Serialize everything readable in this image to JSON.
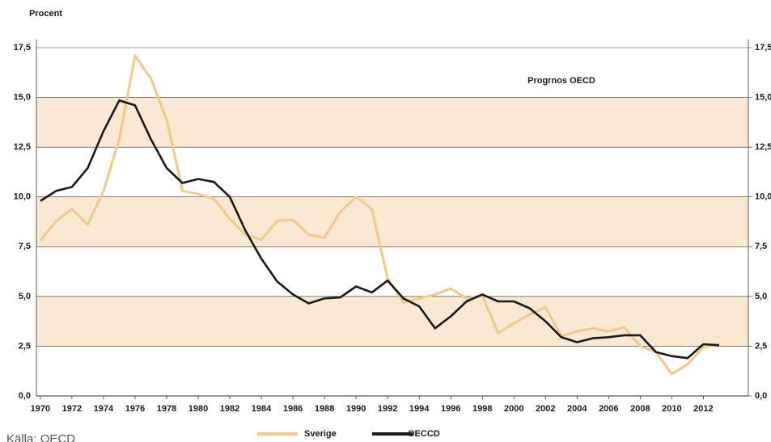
{
  "chart_data": {
    "type": "line",
    "y_label": "Procent",
    "annotation": "Progrnos OECD",
    "source": "Källa: OECD",
    "x": [
      1970,
      1971,
      1972,
      1973,
      1974,
      1975,
      1976,
      1977,
      1978,
      1979,
      1980,
      1981,
      1982,
      1983,
      1984,
      1985,
      1986,
      1987,
      1988,
      1989,
      1990,
      1991,
      1992,
      1993,
      1994,
      1995,
      1996,
      1997,
      1998,
      1999,
      2000,
      2001,
      2002,
      2003,
      2004,
      2005,
      2006,
      2007,
      2008,
      2009,
      2010,
      2011,
      2012,
      2013
    ],
    "series": [
      {
        "name": "Sverige",
        "color": "#f2c98a",
        "values": [
          7.8,
          8.8,
          9.4,
          8.6,
          10.3,
          12.9,
          17.1,
          15.95,
          13.9,
          10.3,
          10.15,
          9.9,
          8.9,
          8.1,
          7.85,
          8.8,
          8.85,
          8.1,
          7.95,
          9.25,
          10.0,
          9.4,
          5.9,
          4.7,
          4.9,
          5.1,
          5.4,
          4.9,
          5.05,
          3.15,
          3.65,
          4.1,
          4.45,
          3.0,
          3.25,
          3.4,
          3.25,
          3.45,
          2.5,
          2.2,
          1.1,
          1.6,
          2.45,
          2.6
        ]
      },
      {
        "name": "OECCD",
        "color": "#1a1a1a",
        "values": [
          9.8,
          10.3,
          10.5,
          11.45,
          13.3,
          14.85,
          14.6,
          12.9,
          11.45,
          10.7,
          10.9,
          10.75,
          10.0,
          8.3,
          6.9,
          5.75,
          5.1,
          4.65,
          4.9,
          4.95,
          5.5,
          5.2,
          5.8,
          4.9,
          4.5,
          3.4,
          4.0,
          4.75,
          5.1,
          4.75,
          4.75,
          4.4,
          3.75,
          2.95,
          2.7,
          2.9,
          2.95,
          3.05,
          3.05,
          2.2,
          2.0,
          1.9,
          2.6,
          2.55
        ]
      }
    ],
    "xlim": [
      1969.75,
      2014.85
    ],
    "xticks": [
      1970,
      1972,
      1974,
      1976,
      1978,
      1980,
      1982,
      1984,
      1986,
      1988,
      1990,
      1992,
      1994,
      1996,
      1998,
      2000,
      2002,
      2004,
      2006,
      2008,
      2010,
      2012
    ],
    "ylim": [
      0,
      17.5
    ],
    "yticks": [
      {
        "value": 0,
        "label": "0,0"
      },
      {
        "value": 2.5,
        "label": "2,5"
      },
      {
        "value": 5,
        "label": "5,0"
      },
      {
        "value": 7.5,
        "label": "7,5"
      },
      {
        "value": 10,
        "label": "10,0"
      },
      {
        "value": 12.5,
        "label": "12,5"
      },
      {
        "value": 15,
        "label": "15,0"
      },
      {
        "value": 17.5,
        "label": "17,5"
      }
    ],
    "shaded_bands": [
      [
        2.5,
        5
      ],
      [
        7.5,
        10
      ],
      [
        12.5,
        15
      ]
    ],
    "band_color": "#fbe8d2",
    "grid": true
  }
}
